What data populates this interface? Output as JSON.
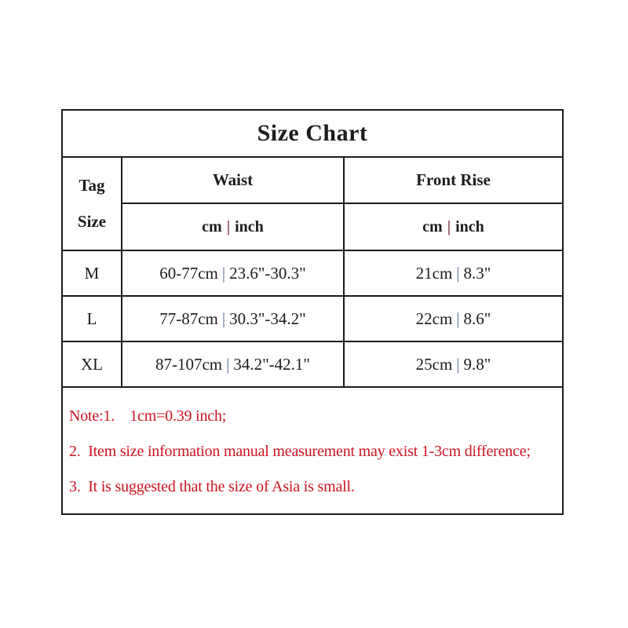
{
  "chart_data": {
    "type": "table",
    "title": "Size Chart",
    "columns": [
      "Tag Size",
      "Waist (cm | inch)",
      "Front Rise (cm | inch)"
    ],
    "rows": [
      [
        "M",
        "60-77cm | 23.6\"-30.3\"",
        "21cm | 8.3\""
      ],
      [
        "L",
        "77-87cm | 30.3\"-34.2\"",
        "22cm | 8.6\""
      ],
      [
        "XL",
        "87-107cm | 34.2\"-42.1\"",
        "25cm | 9.8\""
      ]
    ],
    "notes": [
      "Note:1.    1cm=0.39 inch;",
      "2.  Item size information manual measurement may exist 1-3cm difference;",
      "3.  It is suggested that the size of Asia is small."
    ],
    "layout": "bordered grid table, title row spans all columns, Tag Size cell spans two header rows, notes row spans all columns"
  },
  "table": {
    "title": "Size Chart",
    "separator": "|",
    "header": {
      "tag_line1": "Tag",
      "tag_line2": "Size",
      "waist": "Waist",
      "front_rise": "Front Rise",
      "unit_cm": "cm",
      "unit_inch": "inch"
    },
    "rows": [
      {
        "size": "M",
        "waist_cm": "60-77cm",
        "waist_inch": "23.6\"-30.3\"",
        "rise_cm": "21cm",
        "rise_inch": "8.3\""
      },
      {
        "size": "L",
        "waist_cm": "77-87cm",
        "waist_inch": "30.3\"-34.2\"",
        "rise_cm": "22cm",
        "rise_inch": "8.6\""
      },
      {
        "size": "XL",
        "waist_cm": "87-107cm",
        "waist_inch": "34.2\"-42.1\"",
        "rise_cm": "25cm",
        "rise_inch": "9.8\""
      }
    ],
    "notes": [
      "Note:1.    1cm=0.39 inch;",
      "2.  Item size information manual measurement may exist 1-3cm difference;",
      "3.  It is suggested that the size of Asia is small."
    ]
  },
  "colors": {
    "background": "#ffffff",
    "border": "#1c1c1c",
    "text": "#1c1c1c",
    "note_red": "#cc1422",
    "pipe_data": "#5a6c96",
    "pipe_header": "#7b3540"
  }
}
